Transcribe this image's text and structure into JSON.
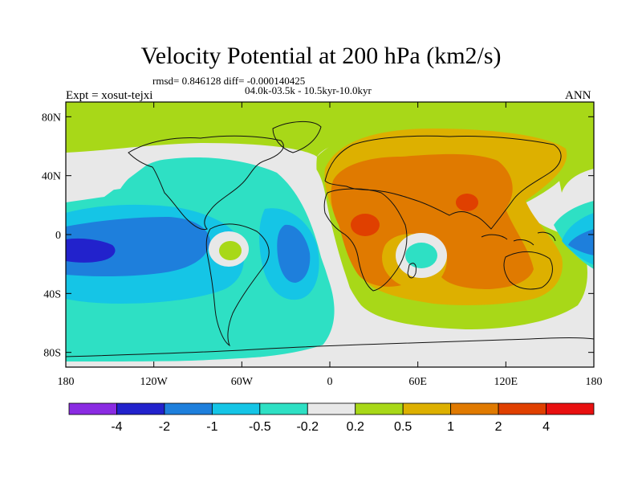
{
  "title": "Velocity Potential at 200 hPa (km2/s)",
  "stats": "rmsd= 0.846128 diff= -0.000140425",
  "period": "04.0k-03.5k - 10.5kyr-10.0kyr",
  "experiment": "Expt = xosut-tejxi",
  "season": "ANN",
  "map": {
    "projection": "cylindrical-equidistant",
    "lon_range": [
      -180,
      180
    ],
    "lat_range": [
      -90,
      90
    ],
    "x_ticks": [
      {
        "lon": -180,
        "label": "180"
      },
      {
        "lon": -120,
        "label": "120W"
      },
      {
        "lon": -60,
        "label": "60W"
      },
      {
        "lon": 0,
        "label": "0"
      },
      {
        "lon": 60,
        "label": "60E"
      },
      {
        "lon": 120,
        "label": "120E"
      },
      {
        "lon": 180,
        "label": "180"
      }
    ],
    "y_ticks": [
      {
        "lat": 80,
        "label": "80N"
      },
      {
        "lat": 40,
        "label": "40N"
      },
      {
        "lat": 0,
        "label": "0"
      },
      {
        "lat": -40,
        "label": "40S"
      },
      {
        "lat": -80,
        "label": "80S"
      }
    ]
  },
  "colorbar": {
    "levels": [
      "-4",
      "-2",
      "-1",
      "-0.5",
      "-0.2",
      "0.2",
      "0.5",
      "1",
      "2",
      "4"
    ],
    "colors": [
      "#8a2be2",
      "#2222cc",
      "#1e7fdc",
      "#15c5e6",
      "#2ee0c4",
      "#e8e8e8",
      "#a8d818",
      "#ddb000",
      "#e07a00",
      "#e04000",
      "#e81010"
    ]
  }
}
